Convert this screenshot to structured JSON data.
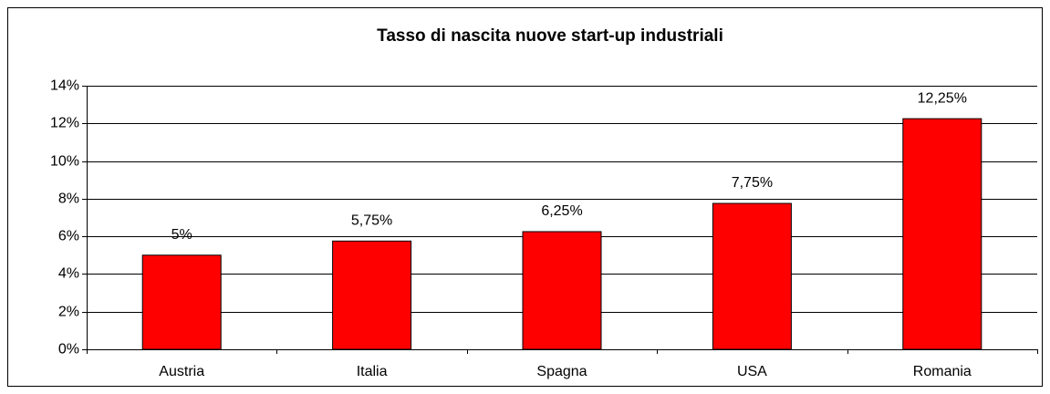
{
  "chart_data": {
    "type": "bar",
    "title": "Tasso di nascita nuove start-up industriali",
    "categories": [
      "Austria",
      "Italia",
      "Spagna",
      "USA",
      "Romania"
    ],
    "values": [
      5,
      5.75,
      6.25,
      7.75,
      12.25
    ],
    "value_labels": [
      "5%",
      "5,75%",
      "6,25%",
      "7,75%",
      "12,25%"
    ],
    "color": "#ff0000",
    "ylim": [
      0,
      14
    ],
    "yticks": [
      {
        "value": 0,
        "label": "0%"
      },
      {
        "value": 2,
        "label": "2%"
      },
      {
        "value": 4,
        "label": "4%"
      },
      {
        "value": 6,
        "label": "6%"
      },
      {
        "value": 8,
        "label": "8%"
      },
      {
        "value": 10,
        "label": "10%"
      },
      {
        "value": 12,
        "label": "12%"
      },
      {
        "value": 14,
        "label": "14%"
      }
    ],
    "grid": true
  }
}
